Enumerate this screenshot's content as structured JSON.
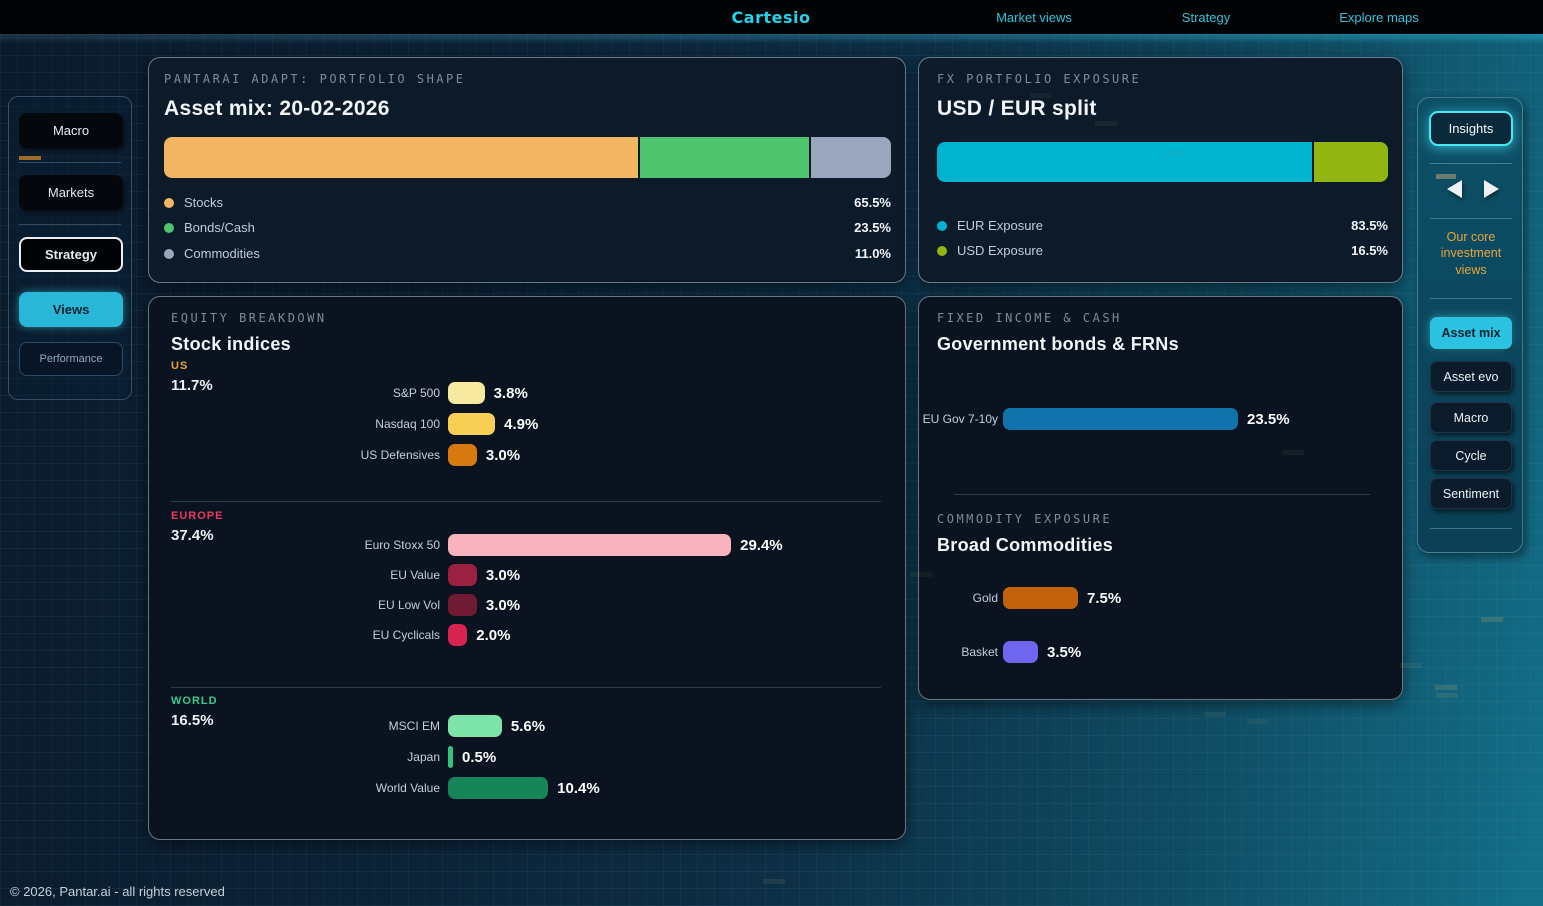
{
  "nav": {
    "logo": "Cartesio",
    "items": [
      {
        "label": "Market views"
      },
      {
        "label": "Strategy"
      },
      {
        "label": "Explore maps"
      }
    ]
  },
  "left_sidebar": {
    "macro": "Macro",
    "markets": "Markets",
    "strategy": "Strategy",
    "views": "Views",
    "performance": "Performance"
  },
  "panels": {
    "asset_mix": {
      "kicker": "PANTARAI ADAPT: PORTFOLIO SHAPE",
      "title": "Asset mix: 20-02-2026",
      "segments": [
        {
          "label": "Stocks",
          "value": "65.5%",
          "pct": 65.5,
          "color": "#f2b561"
        },
        {
          "label": "Bonds/Cash",
          "value": "23.5%",
          "pct": 23.5,
          "color": "#4ec46f"
        },
        {
          "label": "Commodities",
          "value": "11.0%",
          "pct": 11.0,
          "color": "#9aa6be"
        }
      ]
    },
    "fx": {
      "kicker": "FX PORTFOLIO EXPOSURE",
      "title": "USD / EUR split",
      "segments": [
        {
          "label": "EUR Exposure",
          "value": "83.5%",
          "pct": 83.5,
          "color": "#00b4cf"
        },
        {
          "label": "USD Exposure",
          "value": "16.5%",
          "pct": 16.5,
          "color": "#93b512"
        }
      ]
    },
    "equity": {
      "kicker": "EQUITY BREAKDOWN",
      "title": "Stock indices",
      "sections": [
        {
          "name": "US",
          "name_color": "#e8a43c",
          "total": "11.7%",
          "rows": [
            {
              "label": "S&P 500",
              "value": "3.8%",
              "pct": 3.8,
              "color": "#f8e9a0"
            },
            {
              "label": "Nasdaq 100",
              "value": "4.9%",
              "pct": 4.9,
              "color": "#f8cf55"
            },
            {
              "label": "US Defensives",
              "value": "3.0%",
              "pct": 3.0,
              "color": "#d8790f"
            }
          ]
        },
        {
          "name": "EUROPE",
          "name_color": "#e8395e",
          "total": "37.4%",
          "rows": [
            {
              "label": "Euro Stoxx 50",
              "value": "29.4%",
              "pct": 29.4,
              "color": "#f9b3bf"
            },
            {
              "label": "EU Value",
              "value": "3.0%",
              "pct": 3.0,
              "color": "#9c2040"
            },
            {
              "label": "EU Low Vol",
              "value": "3.0%",
              "pct": 3.0,
              "color": "#701a33"
            },
            {
              "label": "EU Cyclicals",
              "value": "2.0%",
              "pct": 2.0,
              "color": "#d92350"
            }
          ]
        },
        {
          "name": "WORLD",
          "name_color": "#3cc98e",
          "total": "16.5%",
          "rows": [
            {
              "label": "MSCI EM",
              "value": "5.6%",
              "pct": 5.6,
              "color": "#7ce3a9"
            },
            {
              "label": "Japan",
              "value": "0.5%",
              "pct": 0.5,
              "color": "#35c07c"
            },
            {
              "label": "World Value",
              "value": "10.4%",
              "pct": 10.4,
              "color": "#17845a"
            }
          ]
        }
      ]
    },
    "fixed_income": {
      "kicker": "FIXED INCOME & CASH",
      "title": "Government bonds & FRNs",
      "rows": [
        {
          "label": "EU Gov 7-10y",
          "value": "23.5%",
          "pct": 23.5,
          "color": "#1173ab"
        }
      ],
      "commodity_kicker": "COMMODITY EXPOSURE",
      "commodity_title": "Broad Commodities",
      "commodity_rows": [
        {
          "label": "Gold",
          "value": "7.5%",
          "pct": 7.5,
          "color": "#c2620c"
        },
        {
          "label": "Basket",
          "value": "3.5%",
          "pct": 3.5,
          "color": "#6f66f0"
        }
      ]
    }
  },
  "right_sidebar": {
    "insights": "Insights",
    "caption": "Our core investment views",
    "buttons": [
      {
        "label": "Asset mix",
        "active": true
      },
      {
        "label": "Asset evo",
        "active": false
      },
      {
        "label": "Macro",
        "active": false
      },
      {
        "label": "Cycle",
        "active": false
      },
      {
        "label": "Sentiment",
        "active": false
      }
    ]
  },
  "footer": "© 2026, Pantar.ai - all rights reserved"
}
